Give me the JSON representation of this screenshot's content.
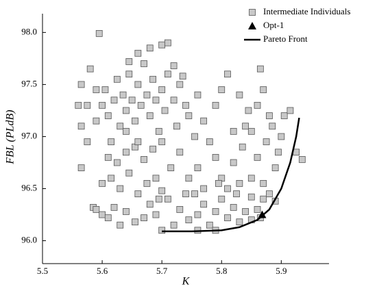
{
  "chart_data": {
    "type": "scatter",
    "xlabel": "K",
    "ylabel": "FBL (PLdB)",
    "xlim": [
      5.5,
      5.98
    ],
    "ylim": [
      95.78,
      98.18
    ],
    "xticks": [
      5.5,
      5.6,
      5.7,
      5.8,
      5.9
    ],
    "yticks": [
      {
        "value": 96,
        "label": "96.0"
      },
      {
        "value": 96.5,
        "label": "96.5"
      },
      {
        "value": 97,
        "label": "97.0"
      },
      {
        "value": 97.5,
        "label": "97.5"
      },
      {
        "value": 98,
        "label": "98.0"
      }
    ],
    "legend": "upper right",
    "series": [
      {
        "name": "Intermediate Individuals",
        "marker": "square",
        "color": "#c8c8c8",
        "x": [
          5.595,
          5.565,
          5.56,
          5.575,
          5.565,
          5.565,
          5.585,
          5.59,
          5.6,
          5.61,
          5.62,
          5.63,
          5.64,
          5.655,
          5.67,
          5.68,
          5.69,
          5.695,
          5.6,
          5.615,
          5.63,
          5.645,
          5.66,
          5.675,
          5.69,
          5.7,
          5.61,
          5.625,
          5.64,
          5.655,
          5.67,
          5.685,
          5.7,
          5.715,
          5.59,
          5.6,
          5.605,
          5.61,
          5.62,
          5.625,
          5.63,
          5.635,
          5.64,
          5.645,
          5.65,
          5.655,
          5.66,
          5.665,
          5.67,
          5.675,
          5.68,
          5.685,
          5.69,
          5.695,
          5.7,
          5.705,
          5.71,
          5.72,
          5.725,
          5.73,
          5.74,
          5.7,
          5.68,
          5.66,
          5.645,
          5.72,
          5.735,
          5.745,
          5.755,
          5.73,
          5.745,
          5.76,
          5.77,
          5.76,
          5.77,
          5.78,
          5.79,
          5.8,
          5.79,
          5.8,
          5.73,
          5.745,
          5.76,
          5.77,
          5.78,
          5.79,
          5.8,
          5.81,
          5.82,
          5.83,
          5.84,
          5.85,
          5.86,
          5.87,
          5.88,
          5.89,
          5.81,
          5.83,
          5.85,
          5.87,
          5.82,
          5.835,
          5.85,
          5.86,
          5.875,
          5.885,
          5.895,
          5.905,
          5.915,
          5.81,
          5.83,
          5.845,
          5.865,
          5.87,
          5.88,
          5.84,
          5.82,
          5.86,
          5.9,
          5.925,
          5.935,
          5.89,
          5.85,
          5.865,
          5.79,
          5.76,
          5.72,
          5.71,
          5.74,
          5.66,
          5.64,
          5.615,
          5.7,
          5.71,
          5.575,
          5.58,
          5.59,
          5.755,
          5.795,
          5.825
        ],
        "values": [
          97.99,
          97.5,
          97.3,
          97.3,
          97.1,
          96.7,
          96.32,
          96.3,
          96.25,
          96.22,
          96.32,
          96.15,
          96.28,
          96.18,
          96.22,
          96.35,
          96.25,
          96.4,
          96.55,
          96.6,
          96.5,
          96.65,
          96.45,
          96.55,
          96.6,
          96.48,
          96.8,
          96.75,
          96.85,
          96.9,
          96.78,
          96.88,
          96.95,
          96.7,
          97.15,
          97.3,
          97.45,
          97.2,
          97.35,
          97.55,
          97.1,
          97.4,
          97.25,
          97.6,
          97.35,
          97.15,
          97.5,
          97.3,
          97.7,
          97.4,
          97.2,
          97.55,
          97.35,
          97.05,
          97.45,
          97.25,
          97.6,
          97.35,
          97.1,
          97.5,
          97.3,
          97.88,
          97.85,
          97.8,
          97.72,
          97.68,
          97.58,
          97.2,
          97.0,
          96.85,
          96.6,
          96.7,
          96.5,
          97.4,
          97.15,
          96.95,
          97.3,
          97.45,
          96.8,
          96.6,
          96.3,
          96.2,
          96.25,
          96.35,
          96.15,
          96.28,
          96.4,
          96.22,
          96.32,
          96.18,
          96.28,
          96.42,
          96.3,
          96.4,
          96.45,
          96.38,
          96.5,
          96.55,
          96.6,
          96.55,
          96.75,
          96.9,
          97.05,
          96.8,
          96.95,
          97.1,
          96.85,
          97.2,
          97.25,
          97.6,
          97.4,
          97.25,
          97.65,
          97.45,
          97.2,
          97.1,
          97.05,
          97.3,
          97.0,
          96.85,
          96.78,
          96.7,
          96.2,
          96.22,
          96.1,
          96.1,
          96.15,
          96.4,
          96.45,
          96.95,
          97.05,
          96.95,
          96.1,
          97.9,
          96.95,
          97.65,
          97.45,
          96.45,
          96.55,
          96.45
        ]
      },
      {
        "name": "Opt-1",
        "marker": "triangle",
        "color": "#000000",
        "x": [
          5.868
        ],
        "values": [
          96.25
        ]
      },
      {
        "name": "Pareto Front",
        "marker": "line",
        "color": "#000000",
        "x": [
          5.7,
          5.75,
          5.8,
          5.83,
          5.86,
          5.88,
          5.9,
          5.915,
          5.925,
          5.93
        ],
        "values": [
          96.09,
          96.09,
          96.1,
          96.13,
          96.2,
          96.3,
          96.5,
          96.75,
          97.0,
          97.18
        ]
      }
    ]
  }
}
